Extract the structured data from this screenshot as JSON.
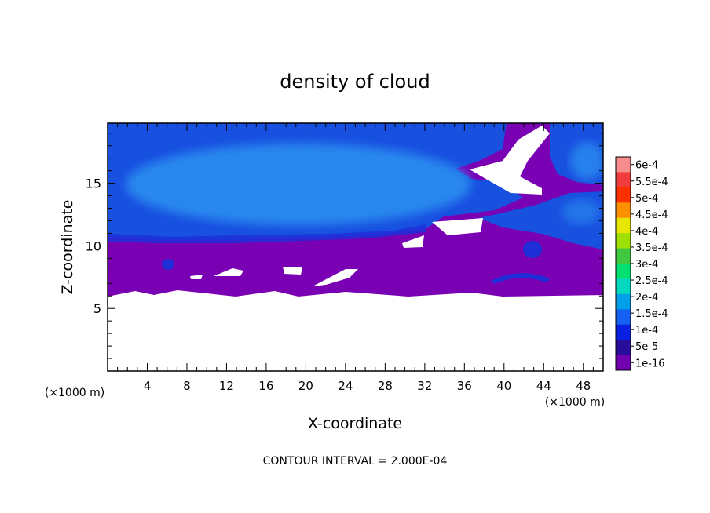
{
  "chart_data": {
    "type": "heatmap",
    "title": "density of cloud",
    "xlabel": "X-coordinate",
    "ylabel": "Z-coordinate",
    "x_unit_left": "(×1000 m)",
    "x_unit_right": "(×1000 m)",
    "footer": "CONTOUR INTERVAL = 2.000E-04",
    "x_ticks": [
      4,
      8,
      12,
      16,
      20,
      24,
      28,
      32,
      36,
      40,
      44,
      48
    ],
    "y_ticks": [
      5,
      10,
      15
    ],
    "xlim": [
      0,
      50
    ],
    "ylim": [
      0,
      19.8
    ],
    "colorbar": {
      "labels": [
        "6e-4",
        "5.5e-4",
        "5e-4",
        "4.5e-4",
        "4e-4",
        "3.5e-4",
        "3e-4",
        "2.5e-4",
        "2e-4",
        "1.5e-4",
        "1e-4",
        "5e-5",
        "1e-16"
      ],
      "colors": [
        "#f88c8c",
        "#f03c3c",
        "#ff3000",
        "#ff9000",
        "#e6e600",
        "#a0e000",
        "#40c840",
        "#00e070",
        "#00d8c0",
        "#00a0e8",
        "#1460f0",
        "#0a20e0",
        "#2a0c9a",
        "#7000b0"
      ]
    },
    "fields": {
      "low_density": "#7a00b4",
      "upper_cloud": "#1850e0",
      "cloud_core": "#2a8ef0",
      "cloud_edge": "#1f2fd8",
      "no_cloud": "#ffffff"
    }
  }
}
